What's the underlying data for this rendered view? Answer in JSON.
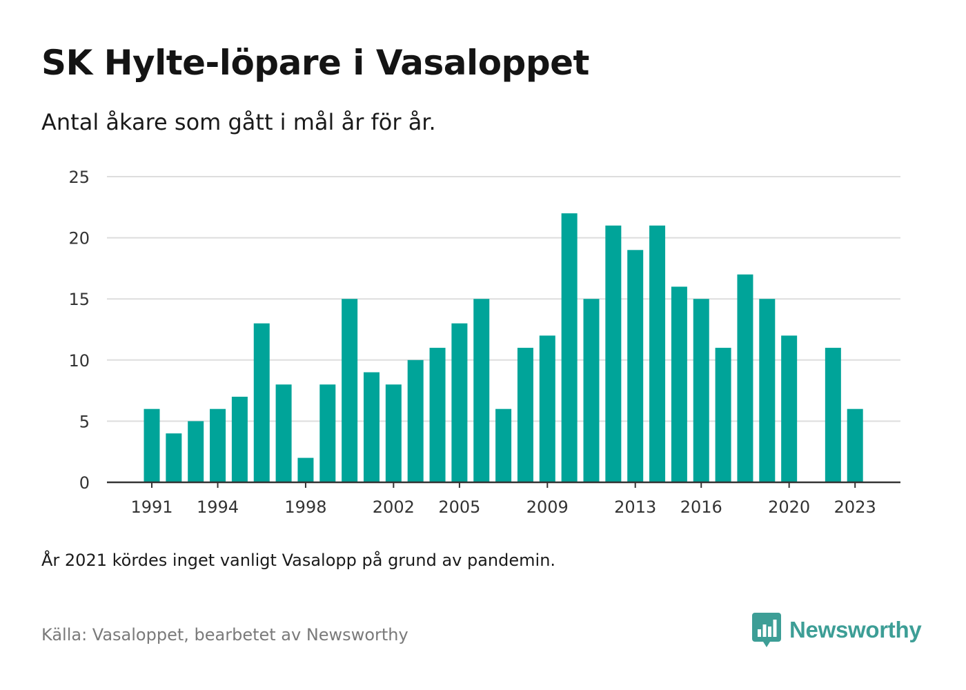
{
  "header": {
    "title": "SK Hylte-löpare i Vasaloppet",
    "subtitle": "Antal åkare som gått i mål år för år."
  },
  "footer": {
    "note": "År 2021 kördes inget vanligt Vasalopp på grund av pandemin.",
    "source": "Källa: Vasaloppet, bearbetet av Newsworthy",
    "brand_name": "Newsworthy",
    "brand_icon": "newsworthy-logo-icon"
  },
  "colors": {
    "bar": "#00a499",
    "gridline": "#dddddd",
    "axis": "#333333",
    "brand": "#3d9e96"
  },
  "chart_data": {
    "type": "bar",
    "categories": [
      "1991",
      "1992",
      "1993",
      "1994",
      "1995",
      "1996",
      "1997",
      "1998",
      "1999",
      "2000",
      "2001",
      "2002",
      "2003",
      "2004",
      "2005",
      "2006",
      "2007",
      "2008",
      "2009",
      "2010",
      "2011",
      "2012",
      "2013",
      "2014",
      "2015",
      "2016",
      "2017",
      "2018",
      "2019",
      "2020",
      "2021",
      "2022",
      "2023"
    ],
    "values": [
      6,
      4,
      5,
      6,
      7,
      13,
      8,
      2,
      8,
      15,
      9,
      8,
      10,
      11,
      13,
      15,
      6,
      11,
      12,
      22,
      15,
      21,
      19,
      21,
      16,
      15,
      11,
      17,
      15,
      12,
      0,
      11,
      6
    ],
    "x_tick_labels": [
      "1991",
      "1994",
      "1998",
      "2002",
      "2005",
      "2009",
      "2013",
      "2016",
      "2020",
      "2023"
    ],
    "y_ticks": [
      0,
      5,
      10,
      15,
      20,
      25
    ],
    "ylim": [
      0,
      25
    ],
    "grid": true,
    "legend": "none"
  }
}
